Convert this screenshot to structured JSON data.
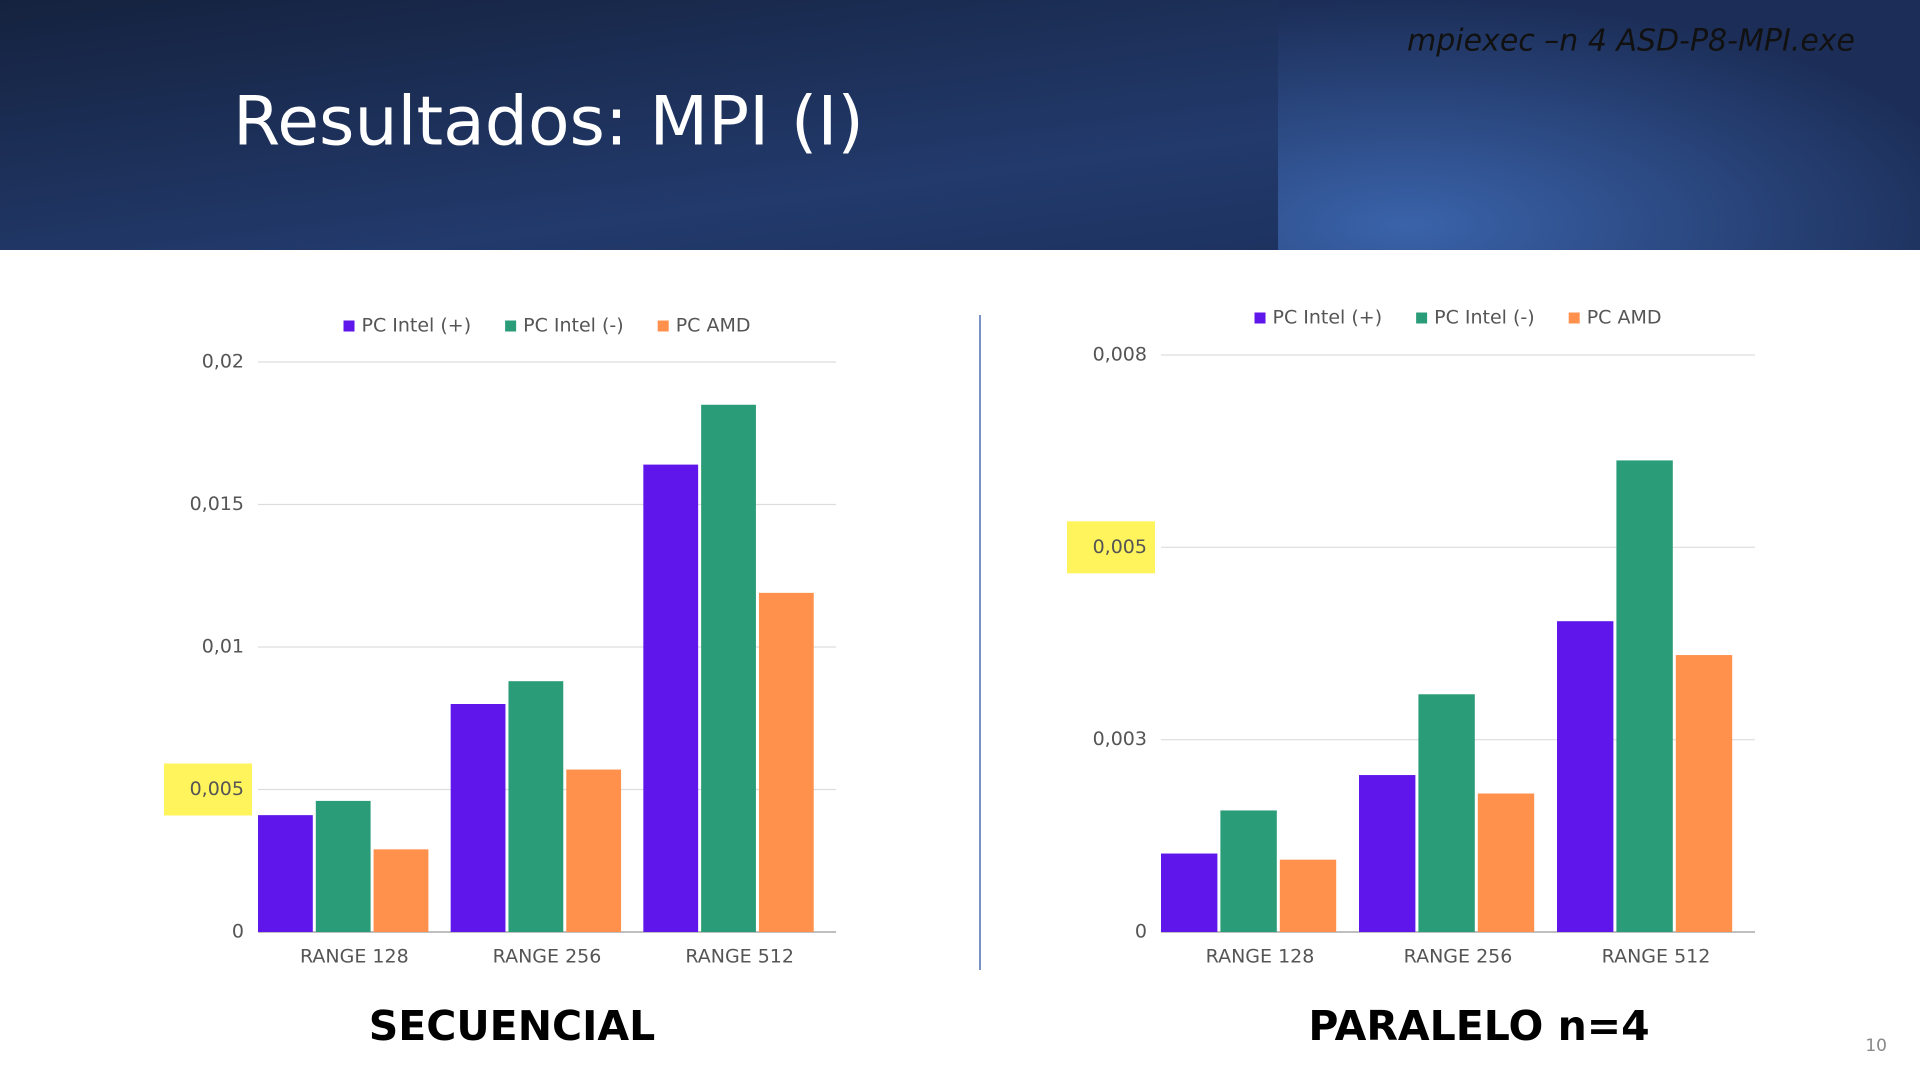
{
  "slide": {
    "title": "Resultados: MPI (I)",
    "command": "mpiexec –n 4 ASD-P8-MPI.exe",
    "page_number": "10"
  },
  "chart_data": [
    {
      "type": "bar",
      "caption": "SECUENCIAL",
      "categories": [
        "RANGE 128",
        "RANGE 256",
        "RANGE 512"
      ],
      "series": [
        {
          "name": "PC Intel (+)",
          "color": "#5f16eb",
          "values": [
            0.0041,
            0.008,
            0.0164
          ]
        },
        {
          "name": "PC Intel (-)",
          "color": "#2a9d78",
          "values": [
            0.0046,
            0.0088,
            0.0185
          ]
        },
        {
          "name": "PC AMD",
          "color": "#ff914d",
          "values": [
            0.0029,
            0.0057,
            0.0119
          ]
        }
      ],
      "ylim": [
        0,
        0.02
      ],
      "yticks": [
        0,
        {
          "value": 0.005,
          "label": "0,005"
        },
        {
          "value": 0.01,
          "label": "0,01"
        },
        {
          "value": 0.015,
          "label": "0,015"
        },
        {
          "value": 0.02,
          "label": "0,02"
        }
      ],
      "grid": true,
      "legend": "top",
      "highlight": {
        "ytick": 1,
        "color": "#fff45c"
      }
    },
    {
      "type": "bar",
      "caption": "PARALELO n=4",
      "categories": [
        "RANGE 128",
        "RANGE 256",
        "RANGE 512"
      ],
      "series": [
        {
          "name": "PC Intel (+)",
          "color": "#5f16eb",
          "values": [
            0.00102,
            0.00204,
            0.00404
          ]
        },
        {
          "name": "PC Intel (-)",
          "color": "#2a9d78",
          "values": [
            0.00158,
            0.00309,
            0.00613
          ]
        },
        {
          "name": "PC AMD",
          "color": "#ff914d",
          "values": [
            0.00094,
            0.0018,
            0.0036
          ]
        }
      ],
      "ylim": [
        0,
        0.0075
      ],
      "yticks": [
        0,
        {
          "value": 0.0025,
          "label": "0,003"
        },
        {
          "value": 0.005,
          "label": "0,005"
        },
        {
          "value": 0.0075,
          "label": "0,008"
        }
      ],
      "grid": true,
      "legend": "top",
      "highlight": {
        "ytick": 2,
        "color": "#fff45c"
      }
    }
  ]
}
